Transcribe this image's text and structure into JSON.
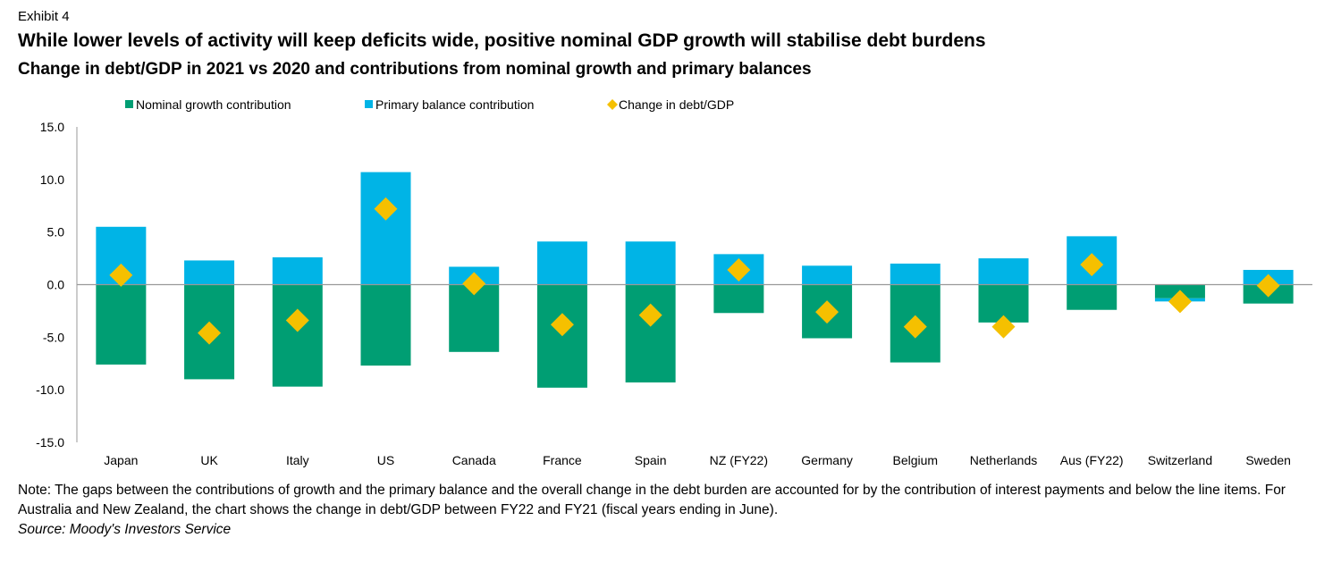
{
  "header": {
    "exhibit": "Exhibit 4",
    "title": "While lower levels of activity will keep deficits wide, positive nominal GDP growth will stabilise debt burdens",
    "subtitle": "Change in debt/GDP in 2021 vs 2020 and contributions from nominal growth and primary balances"
  },
  "footer": {
    "note": "Note: The gaps between the contributions of growth and the primary balance and the overall change in the debt burden are accounted for by the contribution of interest payments and below the line items. For Australia and New Zealand, the chart shows the change in debt/GDP between FY22 and FY21 (fiscal years ending in June).",
    "source": "Source: Moody's Investors Service"
  },
  "colors": {
    "nominal_growth": "#009E73",
    "primary_balance": "#00B4E6",
    "change_debt": "#F5C000",
    "axis": "#999999"
  },
  "chart_data": {
    "type": "bar",
    "stacked": true,
    "categories": [
      "Japan",
      "UK",
      "Italy",
      "US",
      "Canada",
      "France",
      "Spain",
      "NZ (FY22)",
      "Germany",
      "Belgium",
      "Netherlands",
      "Aus (FY22)",
      "Switzerland",
      "Sweden"
    ],
    "series": [
      {
        "name": "Nominal growth contribution",
        "kind": "bar",
        "values": [
          -7.6,
          -9.0,
          -9.7,
          -7.7,
          -6.4,
          -9.8,
          -9.3,
          -2.7,
          -5.1,
          -7.4,
          -3.6,
          -2.4,
          -1.3,
          -1.8
        ]
      },
      {
        "name": "Primary balance contribution",
        "kind": "bar",
        "values": [
          5.5,
          2.3,
          2.6,
          10.7,
          1.7,
          4.1,
          4.1,
          2.9,
          1.8,
          2.0,
          2.5,
          4.6,
          -0.3,
          1.4
        ]
      },
      {
        "name": "Change in debt/GDP",
        "kind": "marker",
        "values": [
          0.9,
          -4.6,
          -3.4,
          7.2,
          0.1,
          -3.8,
          -2.9,
          1.4,
          -2.6,
          -4.0,
          -4.0,
          1.9,
          -1.6,
          -0.1
        ]
      }
    ],
    "ylim": [
      -15,
      15
    ],
    "yticks": [
      "-15.0",
      "-10.0",
      "-5.0",
      "0.0",
      "5.0",
      "10.0",
      "15.0"
    ],
    "legend_position": "top"
  }
}
